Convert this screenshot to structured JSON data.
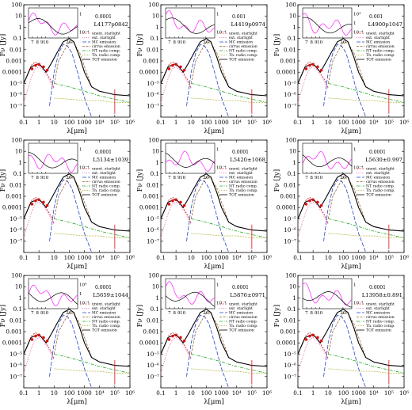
{
  "figure": {
    "panels": [
      {
        "id": "L4177p0842",
        "label": "L4177p0842",
        "insetAnnotation": "0.0001",
        "insetTicks": [
          "7",
          "8",
          "9",
          "10",
          "20"
        ],
        "insetYTicks": [
          "1",
          "10⁻⁴"
        ]
      },
      {
        "id": "L4419p0974",
        "label": "L4419p0974",
        "insetAnnotation": "0.001",
        "insetTicks": [
          "7",
          "8",
          "9",
          "10",
          "20"
        ],
        "insetYTicks": [
          "1",
          "10⁻⁴"
        ]
      },
      {
        "id": "L4900p1047",
        "label": "L4900p1047",
        "insetAnnotation": "0.001",
        "insetTicks": [
          "7",
          "8",
          "9",
          "10",
          "20"
        ],
        "insetYTicks": [
          "10⁴",
          "1",
          "10⁻⁴"
        ]
      },
      {
        "id": "L5134p1039",
        "label": "L5134±1039",
        "insetAnnotation": "0.0001",
        "insetTicks": [
          "7",
          "8",
          "9",
          "10",
          "20"
        ],
        "insetYTicks": [
          "1",
          "10⁻⁴"
        ]
      },
      {
        "id": "L5420p1068",
        "label": "L5420±1068",
        "insetAnnotation": "0.0001",
        "insetTicks": [
          "7",
          "8",
          "9",
          "10",
          "20"
        ],
        "insetYTicks": [
          "1",
          "10⁻⁴"
        ]
      },
      {
        "id": "L5630p0997",
        "label": "L5630±0.997",
        "insetAnnotation": "0.0001",
        "insetTicks": [
          "7",
          "8",
          "9",
          "10",
          "20"
        ],
        "insetYTicks": [
          "1",
          "10⁻⁴"
        ]
      },
      {
        "id": "L5659p1044",
        "label": "L5659±1044",
        "insetAnnotation": "0.0001",
        "insetTicks": [
          "7",
          "8",
          "9",
          "10",
          "20"
        ],
        "insetYTicks": [
          "10⁴",
          "1",
          "10⁻⁴"
        ]
      },
      {
        "id": "L5876p0971",
        "label": "L5876±0971",
        "insetAnnotation": "0.0001",
        "insetTicks": [
          "7",
          "8",
          "9",
          "10",
          "20"
        ],
        "insetYTicks": [
          "1",
          "10⁻⁴"
        ]
      },
      {
        "id": "L13958p0891",
        "label": "L13958±0.891",
        "insetAnnotation": "0.0001",
        "insetTicks": [
          "7",
          "8",
          "9",
          "10",
          "20"
        ],
        "insetYTicks": [
          "1",
          "10⁻⁴"
        ]
      }
    ],
    "legend": [
      {
        "label": "unext. starlight",
        "color": "#cc2222",
        "dash": "2,1.5"
      },
      {
        "label": "ext. starlight",
        "color": "#ee44aa",
        "dash": "1,1.5"
      },
      {
        "label": "MC emission",
        "color": "#2244cc",
        "dash": "5,2"
      },
      {
        "label": "cirrus emission",
        "color": "#996633",
        "dash": "3,1.5"
      },
      {
        "label": "NT radio comp.",
        "color": "#22aa22",
        "dash": "4,1.5,1,1.5"
      },
      {
        "label": "Th. radio comp.",
        "color": "#aaaa22",
        "dash": "1,1"
      },
      {
        "label": "TOT emission",
        "color": "#000000",
        "dash": ""
      }
    ]
  },
  "chart_data": {
    "type": "line",
    "layout": "3x3 grid of spectral energy distribution panels, each with an inset mid-IR spectrum",
    "xlabel": "λ[μm]",
    "ylabel": "Fν [Jy]",
    "xscale": "log",
    "yscale": "log",
    "xlim": [
      0.1,
      1000000
    ],
    "ylim": [
      1e-08,
      100
    ],
    "xticks": [
      "0.1",
      "1",
      "10",
      "100",
      "1000",
      "10⁴",
      "10⁵",
      "10⁶"
    ],
    "yticks": [
      "100",
      "10",
      "1",
      "0.1",
      "0.01",
      "0.001",
      "0.0001",
      "10⁻⁵",
      "10⁻⁶",
      "10⁻⁷"
    ],
    "legend_placement": "right, below inset",
    "inset": {
      "xlim": [
        5,
        30
      ],
      "xticks": [
        "7",
        "8",
        "9",
        "10",
        "20"
      ],
      "xscale": "log"
    },
    "series": [
      {
        "name": "unext. starlight",
        "x": [
          0.1,
          0.2,
          0.35,
          0.6,
          1,
          2,
          5,
          10
        ],
        "y": [
          1e-05,
          0.0001,
          0.0005,
          0.0008,
          0.0005,
          0.0002,
          3e-05,
          4e-06
        ]
      },
      {
        "name": "ext. starlight",
        "x": [
          0.1,
          0.2,
          0.35,
          0.6,
          1,
          2,
          5,
          10
        ],
        "y": [
          2e-07,
          5e-06,
          5e-05,
          0.0002,
          0.0003,
          0.00015,
          2e-05,
          3e-06
        ]
      },
      {
        "name": "MC emission",
        "x": [
          5,
          10,
          20,
          40,
          80,
          150,
          400,
          1000,
          3000
        ],
        "y": [
          1e-07,
          0.0001,
          0.005,
          0.03,
          0.02,
          0.005,
          5e-05,
          5e-07,
          1e-08
        ]
      },
      {
        "name": "cirrus emission",
        "x": [
          10,
          20,
          50,
          100,
          200,
          500,
          1000,
          3000
        ],
        "y": [
          1e-05,
          0.001,
          0.01,
          0.05,
          0.04,
          0.005,
          0.0003,
          5e-06
        ]
      },
      {
        "name": "NT radio comp.",
        "x": [
          10,
          100,
          1000,
          10000,
          100000,
          1000000
        ],
        "y": [
          1e-05,
          5e-06,
          2e-06,
          8e-07,
          4e-07,
          2e-07
        ]
      },
      {
        "name": "Th. radio comp.",
        "x": [
          10,
          100,
          1000,
          10000,
          100000,
          1000000
        ],
        "y": [
          5e-07,
          4e-07,
          3e-07,
          3e-07,
          2e-07,
          2e-07
        ]
      },
      {
        "name": "TOT emission",
        "x": [
          0.1,
          0.3,
          1,
          3,
          8,
          15,
          40,
          100,
          200,
          500,
          1000,
          3000,
          10000,
          100000,
          1000000
        ],
        "y": [
          1e-05,
          0.0003,
          0.0006,
          0.0001,
          0.001,
          0.005,
          0.05,
          0.1,
          0.05,
          0.002,
          0.0001,
          5e-06,
          2e-06,
          1e-06,
          8e-07
        ]
      }
    ]
  }
}
